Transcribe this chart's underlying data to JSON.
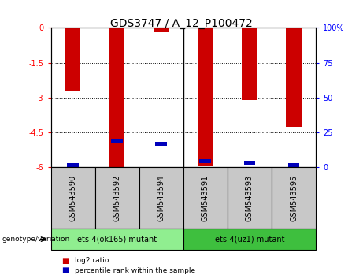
{
  "title": "GDS3747 / A_12_P100472",
  "samples": [
    "GSM543590",
    "GSM543592",
    "GSM543594",
    "GSM543591",
    "GSM543593",
    "GSM543595"
  ],
  "log2_ratios": [
    -2.7,
    -6.0,
    -0.18,
    -5.95,
    -3.1,
    -4.25
  ],
  "percentile_ranks": [
    1.5,
    19.0,
    17.0,
    4.5,
    3.5,
    1.5
  ],
  "ylim_min": -6.0,
  "ylim_max": 0.0,
  "yticks_left": [
    0,
    -1.5,
    -3.0,
    -4.5,
    -6.0
  ],
  "ytick_labels_left": [
    "0",
    "-1.5",
    "-3",
    "-4.5",
    "-6"
  ],
  "yticks_right_pct": [
    100,
    75,
    50,
    25,
    0
  ],
  "ytick_labels_right": [
    "100%",
    "75",
    "50",
    "25",
    "0"
  ],
  "group1_label": "ets-4(ok165) mutant",
  "group2_label": "ets-4(uz1) mutant",
  "group1_color": "#90EE90",
  "group2_color": "#3EBF3E",
  "bar_color": "#CC0000",
  "percentile_color": "#0000BB",
  "bg_color": "#C8C8C8",
  "plot_bg": "#FFFFFF",
  "bar_width": 0.35,
  "legend_red_label": "log2 ratio",
  "legend_blue_label": "percentile rank within the sample",
  "genotype_label": "genotype/variation",
  "title_fontsize": 10,
  "axis_fontsize": 7,
  "tick_fontsize": 7
}
